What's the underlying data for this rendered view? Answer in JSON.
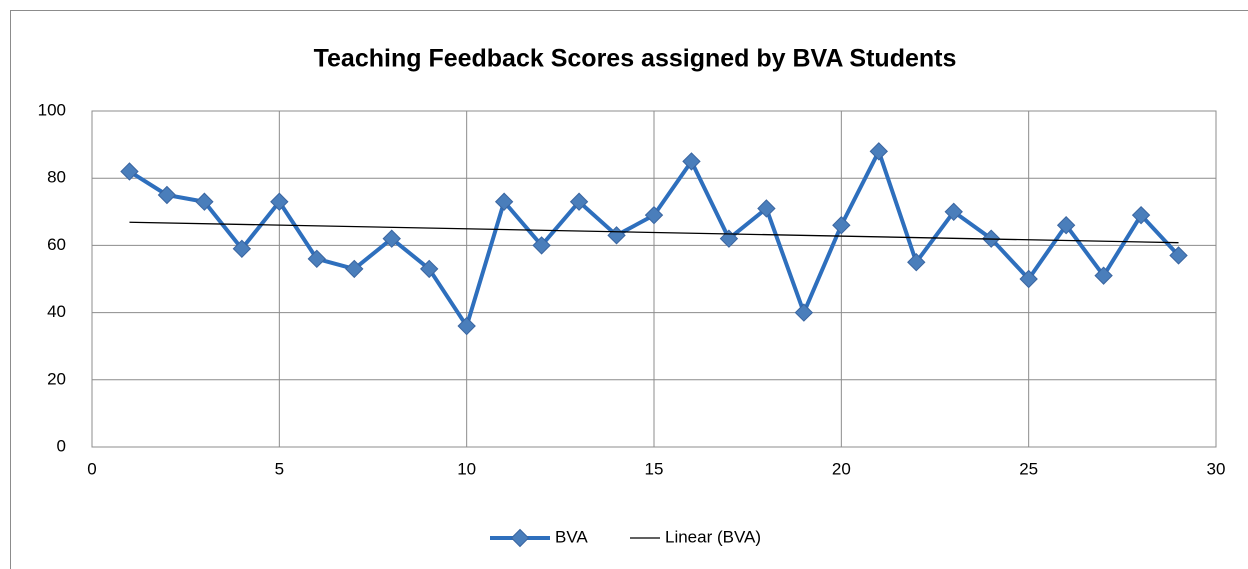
{
  "chart_data": {
    "type": "line",
    "title": "Teaching Feedback Scores assigned by BVA Students",
    "x": [
      1,
      2,
      3,
      4,
      5,
      6,
      7,
      8,
      9,
      10,
      11,
      12,
      13,
      14,
      15,
      16,
      17,
      18,
      19,
      20,
      21,
      22,
      23,
      24,
      25,
      26,
      27,
      28,
      29
    ],
    "series": [
      {
        "name": "BVA",
        "color": "#2e6fbd",
        "values": [
          82,
          75,
          73,
          59,
          73,
          56,
          53,
          62,
          53,
          36,
          73,
          60,
          73,
          63,
          69,
          85,
          62,
          71,
          40,
          66,
          88,
          55,
          70,
          62,
          50,
          66,
          51,
          69,
          57
        ]
      },
      {
        "name": "Linear (BVA)",
        "color": "#000000",
        "x": [
          1,
          29
        ],
        "values": [
          66.9,
          60.8
        ]
      }
    ],
    "xlim": [
      0,
      30
    ],
    "xticks": [
      0,
      5,
      10,
      15,
      20,
      25,
      30
    ],
    "ylim": [
      0,
      100
    ],
    "yticks": [
      0,
      20,
      40,
      60,
      80,
      100
    ],
    "grid": true,
    "legend": "bottom"
  }
}
